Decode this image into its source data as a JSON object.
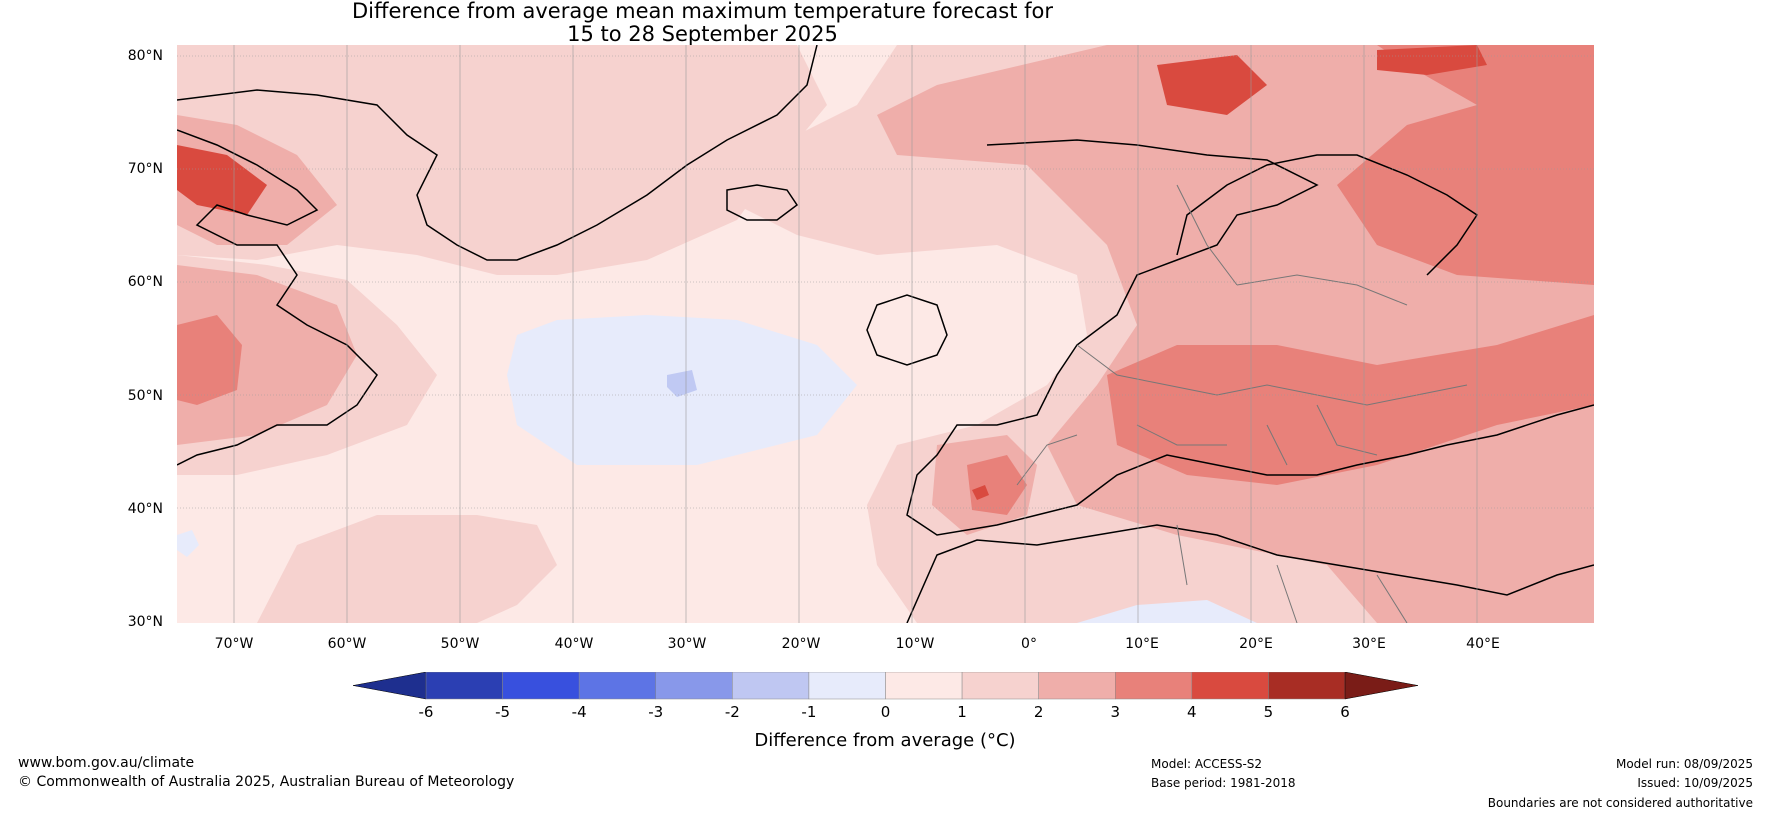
{
  "title": {
    "line1": "Difference from average mean maximum temperature forecast for",
    "line2": "15 to 28 September 2025"
  },
  "map": {
    "latitudes": [
      "80°N",
      "70°N",
      "60°N",
      "50°N",
      "40°N",
      "30°N"
    ],
    "longitudes": [
      "70°W",
      "60°W",
      "50°W",
      "40°W",
      "30°W",
      "20°W",
      "10°W",
      "0°",
      "10°E",
      "20°E",
      "30°E",
      "40°E"
    ],
    "colors": {
      "bin_0_1": "#fde9e6",
      "bin_1_2": "#f6d2cf",
      "bin_2_3": "#efaeaa",
      "bin_3_4": "#e8817a",
      "bin_4_5": "#d94a3f",
      "bin_-1_0": "#e7ebfb",
      "bin_-2_-1": "#c0c9f3",
      "land_outline": "#000000",
      "border": "#777777"
    }
  },
  "colorbar": {
    "ticks": [
      "-6",
      "-5",
      "-4",
      "-3",
      "-2",
      "-1",
      "0",
      "1",
      "2",
      "3",
      "4",
      "5",
      "6"
    ],
    "colors": [
      "#1e2f8f",
      "#2b3fb3",
      "#3850de",
      "#5d74e5",
      "#8898ea",
      "#bfc7f2",
      "#e7ebfb",
      "#fde9e6",
      "#f6d2cf",
      "#efaeaa",
      "#e8817a",
      "#d94a3f",
      "#a82d24",
      "#7a1c17"
    ],
    "label": "Difference from average (°C)"
  },
  "footer": {
    "website": "www.bom.gov.au/climate",
    "copyright": "© Commonwealth of Australia 2025, Australian Bureau of Meteorology",
    "model": "Model: ACCESS-S2",
    "base_period": "Base period: 1981-2018",
    "model_run": "Model run: 08/09/2025",
    "issued": "Issued: 10/09/2025",
    "disclaimer": "Boundaries are not considered authoritative"
  }
}
